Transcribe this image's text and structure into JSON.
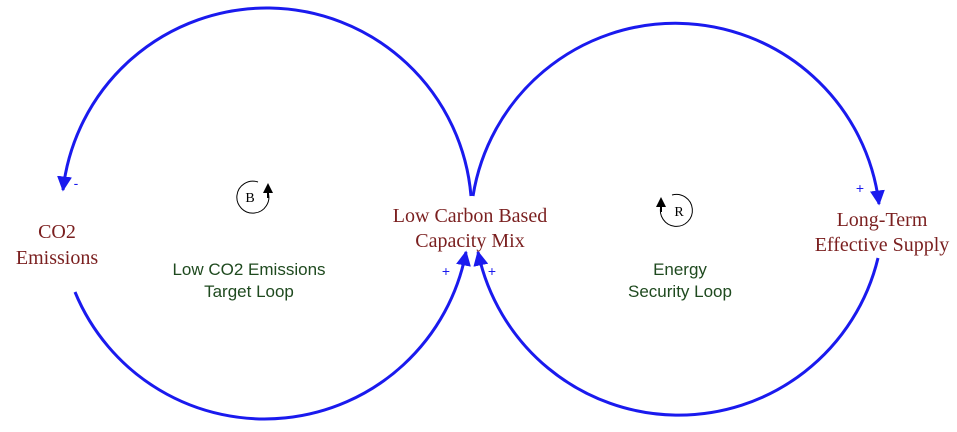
{
  "nodes": [
    {
      "lines": [
        "CO2",
        "Emissions"
      ]
    },
    {
      "lines": [
        "Low Carbon Based",
        "Capacity Mix"
      ]
    },
    {
      "lines": [
        "Long-Term",
        "Effective Supply"
      ]
    }
  ],
  "loops": [
    {
      "symbol": "B",
      "lines": [
        "Low CO2 Emissions",
        "Target Loop"
      ]
    },
    {
      "symbol": "R",
      "lines": [
        "Energy",
        "Security Loop"
      ]
    }
  ],
  "links": [
    {
      "polarity": "-"
    },
    {
      "polarity": "+"
    },
    {
      "polarity": "+"
    },
    {
      "polarity": "+"
    }
  ]
}
